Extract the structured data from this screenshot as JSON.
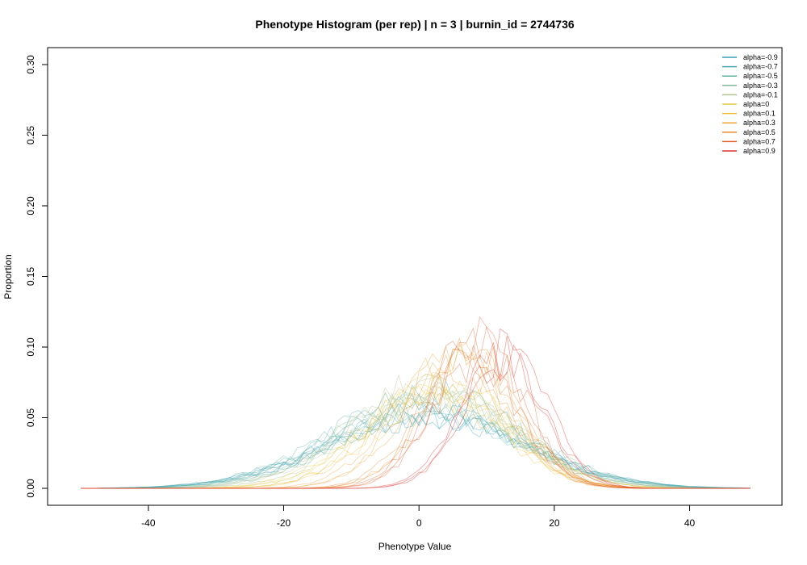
{
  "chart_data": {
    "type": "line",
    "title": "Phenotype Histogram (per rep) | n = 3 | burnin_id = 2744736",
    "xlabel": "Phenotype Value",
    "ylabel": "Proportion",
    "xlim": [
      -50,
      49
    ],
    "ylim": [
      0,
      0.3
    ],
    "xticks": [
      -40,
      -20,
      0,
      20,
      40
    ],
    "yticks": [
      0.0,
      0.05,
      0.1,
      0.15,
      0.2,
      0.25,
      0.3
    ],
    "xtick_labels": [
      "-40",
      "-20",
      "0",
      "20",
      "40"
    ],
    "ytick_labels": [
      "0.00",
      "0.05",
      "0.10",
      "0.15",
      "0.20",
      "0.25",
      "0.30"
    ],
    "grid": false,
    "legend_position": "top-right",
    "replicates_per_series": 3,
    "line_opacity": 0.45,
    "series": [
      {
        "name": "alpha=-0.9",
        "color": "#3a9fb8",
        "mean": 0,
        "sd": 14.5,
        "peak": 0.058
      },
      {
        "name": "alpha=-0.7",
        "color": "#4aa8b0",
        "mean": 0.5,
        "sd": 14.0,
        "peak": 0.058
      },
      {
        "name": "alpha=-0.5",
        "color": "#5fb1a4",
        "mean": 1,
        "sd": 13.5,
        "peak": 0.06
      },
      {
        "name": "alpha=-0.3",
        "color": "#86ba9c",
        "mean": 1.5,
        "sd": 12.5,
        "peak": 0.062
      },
      {
        "name": "alpha=-0.1",
        "color": "#b0c290",
        "mean": 2,
        "sd": 11.5,
        "peak": 0.065
      },
      {
        "name": "alpha=0",
        "color": "#e6c84a",
        "mean": 2.5,
        "sd": 10.5,
        "peak": 0.068
      },
      {
        "name": "alpha=0.1",
        "color": "#ecbe3c",
        "mean": 3,
        "sd": 9.5,
        "peak": 0.075
      },
      {
        "name": "alpha=0.3",
        "color": "#eda53a",
        "mean": 4.5,
        "sd": 8.0,
        "peak": 0.09
      },
      {
        "name": "alpha=0.5",
        "color": "#e88a28",
        "mean": 6.5,
        "sd": 7.0,
        "peak": 0.095
      },
      {
        "name": "alpha=0.7",
        "color": "#e2602a",
        "mean": 9,
        "sd": 6.5,
        "peak": 0.1
      },
      {
        "name": "alpha=0.9",
        "color": "#e0322a",
        "mean": 13,
        "sd": 6.0,
        "peak": 0.09
      }
    ]
  }
}
